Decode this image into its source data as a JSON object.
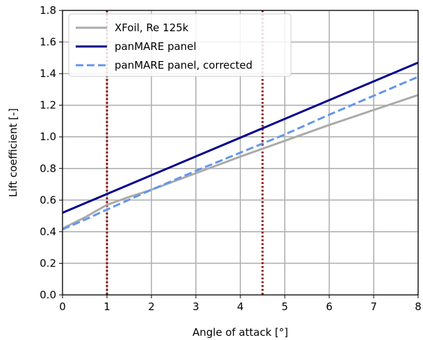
{
  "chart_data": {
    "type": "line",
    "title": "",
    "xlabel": "Angle of attack [°]",
    "ylabel": "Lift coefficient [-]",
    "xlim": [
      0,
      8
    ],
    "ylim": [
      0,
      1.8
    ],
    "xticks": [
      "0",
      "1",
      "2",
      "3",
      "4",
      "5",
      "6",
      "7",
      "8"
    ],
    "yticks": [
      "0.0",
      "0.2",
      "0.4",
      "0.6",
      "0.8",
      "1.0",
      "1.2",
      "1.4",
      "1.6",
      "1.8"
    ],
    "grid": true,
    "legend_position": "top-left",
    "series": [
      {
        "name": "XFoil, Re 125k",
        "color": "#aaaaaa",
        "style": "solid",
        "x": [
          0,
          0.5,
          1.0,
          1.5,
          2.0,
          3.0,
          4.0,
          5.0,
          6.0,
          7.0,
          8.0
        ],
        "y": [
          0.42,
          0.49,
          0.57,
          0.62,
          0.665,
          0.77,
          0.875,
          0.975,
          1.075,
          1.17,
          1.265
        ]
      },
      {
        "name": "panMARE panel",
        "color": "#00008b",
        "style": "solid",
        "x": [
          0,
          8
        ],
        "y": [
          0.52,
          1.47
        ]
      },
      {
        "name": "panMARE panel, corrected",
        "color": "#6495ed",
        "style": "dashed",
        "x": [
          0,
          0.5,
          1.0,
          2.0,
          3.0,
          4.0,
          5.0,
          6.0,
          7.0,
          8.0
        ],
        "y": [
          0.415,
          0.475,
          0.54,
          0.665,
          0.785,
          0.9,
          1.015,
          1.14,
          1.26,
          1.38
        ]
      }
    ],
    "vertical_markers": [
      {
        "x": 1.0,
        "color": "#8b0000",
        "style": "dotted"
      },
      {
        "x": 4.5,
        "color": "#8b0000",
        "style": "dotted"
      }
    ]
  }
}
